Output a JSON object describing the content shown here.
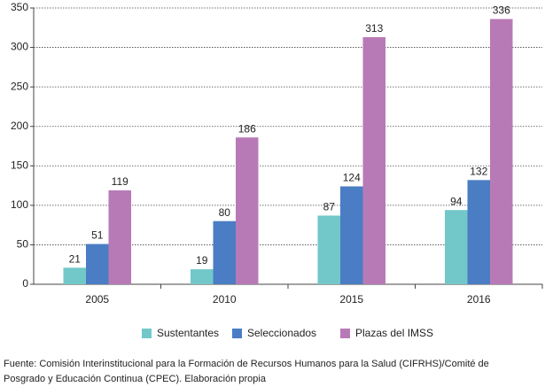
{
  "chart_data": {
    "type": "bar",
    "categories": [
      "2005",
      "2010",
      "2015",
      "2016"
    ],
    "series": [
      {
        "name": "Sustentantes",
        "color": "#72c8c8",
        "values": [
          21,
          19,
          87,
          94
        ]
      },
      {
        "name": "Seleccionados",
        "color": "#4a7dc4",
        "values": [
          51,
          80,
          124,
          132
        ]
      },
      {
        "name": "Plazas del IMSS",
        "color": "#b87ab7",
        "values": [
          119,
          186,
          313,
          336
        ]
      }
    ],
    "ylim": [
      0,
      350
    ],
    "yticks": [
      0,
      50,
      100,
      150,
      200,
      250,
      300,
      350
    ],
    "grid": true,
    "source": [
      "Fuente: Comisión Interinstitucional para la Formación de Recursos Humanos para la Salud (CIFRHS)/Comité de",
      "Posgrado y Educación Continua (CPEC). Elaboración propia"
    ]
  }
}
